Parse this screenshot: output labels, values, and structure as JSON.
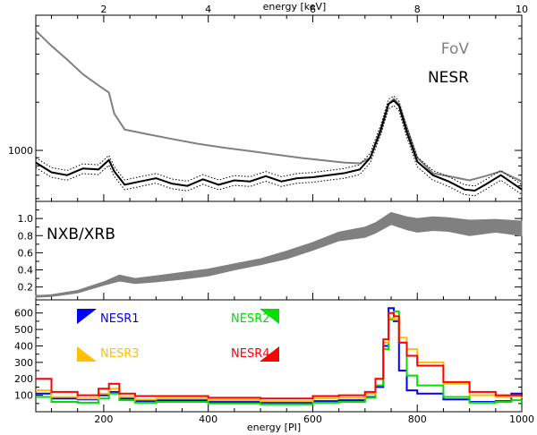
{
  "figure": {
    "top_axis_title": "energy [keV]",
    "bottom_axis_title": "energy [PI]",
    "top_ticks": [
      "2",
      "4",
      "6",
      "8",
      "10"
    ],
    "bottom_ticks": [
      "200",
      "400",
      "600",
      "800",
      "1000"
    ]
  },
  "colors": {
    "fov": "#808080",
    "nesr": "#000000",
    "nxb_band": "#808080",
    "nesr1": "#0000ff",
    "nesr2": "#00e000",
    "nesr3": "#ffc000",
    "nesr4": "#ff0000"
  },
  "chart_data": [
    {
      "type": "line",
      "panel": "top",
      "xlim": [
        70,
        1000
      ],
      "x_unit": "PI",
      "ylim": [
        480,
        7000
      ],
      "y_scale": "log",
      "y_ticks": [
        "1000"
      ],
      "legend": [
        "FoV",
        "NESR"
      ],
      "legend_position": "top-right",
      "series": [
        {
          "name": "FoV",
          "x": [
            70,
            100,
            130,
            160,
            190,
            210,
            220,
            240,
            280,
            330,
            380,
            430,
            480,
            530,
            580,
            630,
            660,
            690,
            710,
            730,
            745,
            755,
            765,
            780,
            800,
            830,
            870,
            900,
            930,
            960,
            1000
          ],
          "y": [
            5600,
            4500,
            3700,
            3000,
            2550,
            2300,
            1700,
            1350,
            1270,
            1180,
            1100,
            1040,
            990,
            940,
            895,
            860,
            840,
            830,
            900,
            1300,
            1950,
            2100,
            1950,
            1400,
            900,
            720,
            680,
            650,
            690,
            740,
            640
          ]
        },
        {
          "name": "NESR",
          "x": [
            70,
            100,
            130,
            160,
            190,
            210,
            220,
            240,
            270,
            300,
            330,
            360,
            390,
            420,
            450,
            480,
            510,
            540,
            570,
            600,
            630,
            660,
            690,
            710,
            730,
            745,
            755,
            765,
            780,
            800,
            830,
            860,
            890,
            910,
            930,
            960,
            1000
          ],
          "y": [
            840,
            730,
            700,
            770,
            760,
            870,
            740,
            610,
            640,
            670,
            620,
            600,
            660,
            610,
            650,
            640,
            690,
            640,
            670,
            680,
            700,
            720,
            760,
            900,
            1350,
            1950,
            2050,
            1900,
            1300,
            850,
            700,
            640,
            570,
            560,
            610,
            700,
            570
          ]
        }
      ]
    },
    {
      "type": "area",
      "panel": "middle",
      "xlim": [
        70,
        1000
      ],
      "ylim": [
        0.05,
        1.2
      ],
      "y_ticks": [
        "0.2",
        "0.4",
        "0.6",
        "0.8",
        "1.0"
      ],
      "label": "NXB/XRB",
      "series": [
        {
          "x": [
            70,
            100,
            150,
            200,
            230,
            260,
            300,
            350,
            400,
            450,
            500,
            550,
            600,
            650,
            700,
            720,
            750,
            780,
            800,
            830,
            860,
            900,
            950,
            1000
          ],
          "y_low": [
            0.08,
            0.09,
            0.13,
            0.22,
            0.27,
            0.24,
            0.26,
            0.29,
            0.33,
            0.4,
            0.46,
            0.53,
            0.63,
            0.74,
            0.78,
            0.83,
            0.93,
            0.87,
            0.84,
            0.86,
            0.85,
            0.8,
            0.84,
            0.8
          ],
          "y_high": [
            0.1,
            0.11,
            0.16,
            0.26,
            0.34,
            0.3,
            0.33,
            0.37,
            0.41,
            0.47,
            0.53,
            0.62,
            0.72,
            0.84,
            0.9,
            0.95,
            1.07,
            1.02,
            1.0,
            1.02,
            1.01,
            0.98,
            0.99,
            0.97
          ]
        }
      ]
    },
    {
      "type": "line",
      "panel": "bottom",
      "xlim": [
        70,
        1000
      ],
      "ylim": [
        0,
        680
      ],
      "y_ticks": [
        "100",
        "200",
        "300",
        "400",
        "500",
        "600"
      ],
      "series": [
        {
          "name": "NESR1",
          "x": [
            70,
            100,
            150,
            190,
            210,
            230,
            260,
            300,
            400,
            500,
            600,
            650,
            700,
            720,
            735,
            745,
            755,
            765,
            780,
            800,
            850,
            900,
            950,
            980,
            1000
          ],
          "y": [
            110,
            80,
            75,
            100,
            120,
            80,
            65,
            70,
            60,
            55,
            65,
            70,
            90,
            150,
            400,
            630,
            550,
            250,
            130,
            110,
            75,
            60,
            65,
            110,
            60
          ]
        },
        {
          "name": "NESR2",
          "x": [
            70,
            100,
            150,
            190,
            210,
            230,
            260,
            300,
            400,
            500,
            600,
            650,
            700,
            720,
            735,
            745,
            755,
            765,
            780,
            800,
            850,
            900,
            950,
            980,
            1000
          ],
          "y": [
            90,
            60,
            55,
            80,
            110,
            70,
            55,
            60,
            50,
            45,
            55,
            60,
            85,
            160,
            380,
            560,
            610,
            420,
            220,
            160,
            90,
            55,
            60,
            70,
            50
          ]
        },
        {
          "name": "NESR3",
          "x": [
            70,
            100,
            150,
            190,
            210,
            230,
            260,
            300,
            400,
            500,
            600,
            650,
            700,
            720,
            735,
            745,
            755,
            765,
            780,
            800,
            850,
            900,
            950,
            980,
            1000
          ],
          "y": [
            130,
            90,
            80,
            110,
            140,
            90,
            75,
            80,
            70,
            65,
            80,
            85,
            110,
            200,
            420,
            570,
            560,
            450,
            380,
            300,
            170,
            100,
            90,
            95,
            80
          ]
        },
        {
          "name": "NESR4",
          "x": [
            70,
            100,
            150,
            190,
            210,
            230,
            260,
            300,
            400,
            500,
            600,
            650,
            700,
            720,
            735,
            745,
            755,
            765,
            780,
            800,
            850,
            900,
            950,
            980,
            1000
          ],
          "y": [
            200,
            120,
            100,
            140,
            170,
            110,
            95,
            95,
            85,
            80,
            95,
            100,
            120,
            200,
            440,
            600,
            580,
            420,
            340,
            280,
            180,
            120,
            100,
            100,
            90
          ]
        }
      ]
    }
  ]
}
